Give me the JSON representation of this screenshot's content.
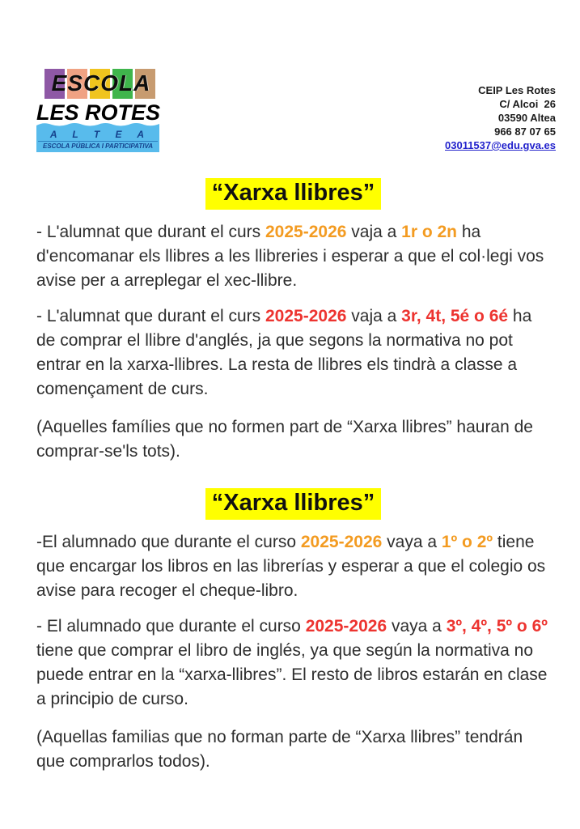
{
  "logo": {
    "escola": "ESCOLA",
    "les_rotes": "LES ROTES",
    "altea": "A L T E A",
    "tagline": "ESCOLA PÚBLICA I PARTICIPATIVA",
    "block_colors": [
      "#8E58A5",
      "#F0A283",
      "#F0C41E",
      "#3FB54C",
      "#C79B70"
    ],
    "banner_blue": "#58BBEC",
    "banner_text_color": "#14418C"
  },
  "contact": {
    "lines": [
      "CEIP Les Rotes",
      "C/ Alcoi  26",
      "03590 Altea",
      "966 87 07 65"
    ],
    "email": "03011537@edu.gva.es"
  },
  "colors": {
    "orange": "#F39B21",
    "red": "#ED3430",
    "highlight": "#FFFF00",
    "text": "#2e2e2e",
    "link": "#2222CC"
  },
  "sections": [
    {
      "title": "“Xarxa llibres”",
      "paragraphs": [
        {
          "segments": [
            {
              "text": "- L'alumnat que durant el curs ",
              "color": "text"
            },
            {
              "text": "2025-2026",
              "color": "orange"
            },
            {
              "text": " vaja a ",
              "color": "text"
            },
            {
              "text": "1r o 2n",
              "color": "orange"
            },
            {
              "text": " ha d'encomanar els llibres a les llibreries i esperar a que el col·legi vos avise per a arreplegar el xec-llibre.",
              "color": "text"
            }
          ]
        },
        {
          "segments": [
            {
              "text": "- L'alumnat que durant el curs ",
              "color": "text"
            },
            {
              "text": "2025-2026",
              "color": "red"
            },
            {
              "text": " vaja a ",
              "color": "text"
            },
            {
              "text": "3r, 4t, 5é o 6é",
              "color": "red"
            },
            {
              "text": " ha de comprar el llibre d'anglés, ja que segons la normativa no pot entrar en la xarxa-llibres. La resta de llibres els tindrà a classe a començament de curs.",
              "color": "text"
            }
          ]
        },
        {
          "segments": [
            {
              "text": "(Aquelles famílies que no formen part de “Xarxa llibres” hauran de comprar-se'ls tots).",
              "color": "text"
            }
          ]
        }
      ]
    },
    {
      "title": "“Xarxa llibres”",
      "paragraphs": [
        {
          "segments": [
            {
              "text": "-El alumnado que durante el curso ",
              "color": "text"
            },
            {
              "text": "2025-2026",
              "color": "orange"
            },
            {
              "text": " vaya a ",
              "color": "text"
            },
            {
              "text": "1º o 2º",
              "color": "orange"
            },
            {
              "text": " tiene que encargar los libros en las librerías y esperar a que el colegio os avise para recoger el cheque-libro.",
              "color": "text"
            }
          ]
        },
        {
          "segments": [
            {
              "text": "- El alumnado que durante el curso ",
              "color": "text"
            },
            {
              "text": "2025-2026",
              "color": "red"
            },
            {
              "text": " vaya a ",
              "color": "text"
            },
            {
              "text": "3º, 4º, 5º o 6º",
              "color": "red"
            },
            {
              "text": " tiene que comprar el libro de inglés, ya que según la normativa no puede entrar en la “xarxa-llibres”. El resto de libros estarán en clase a principio de curso.",
              "color": "text"
            }
          ]
        },
        {
          "segments": [
            {
              "text": "(Aquellas familias que no forman parte de “Xarxa llibres” tendrán que comprarlos todos).",
              "color": "text"
            }
          ]
        }
      ]
    }
  ]
}
